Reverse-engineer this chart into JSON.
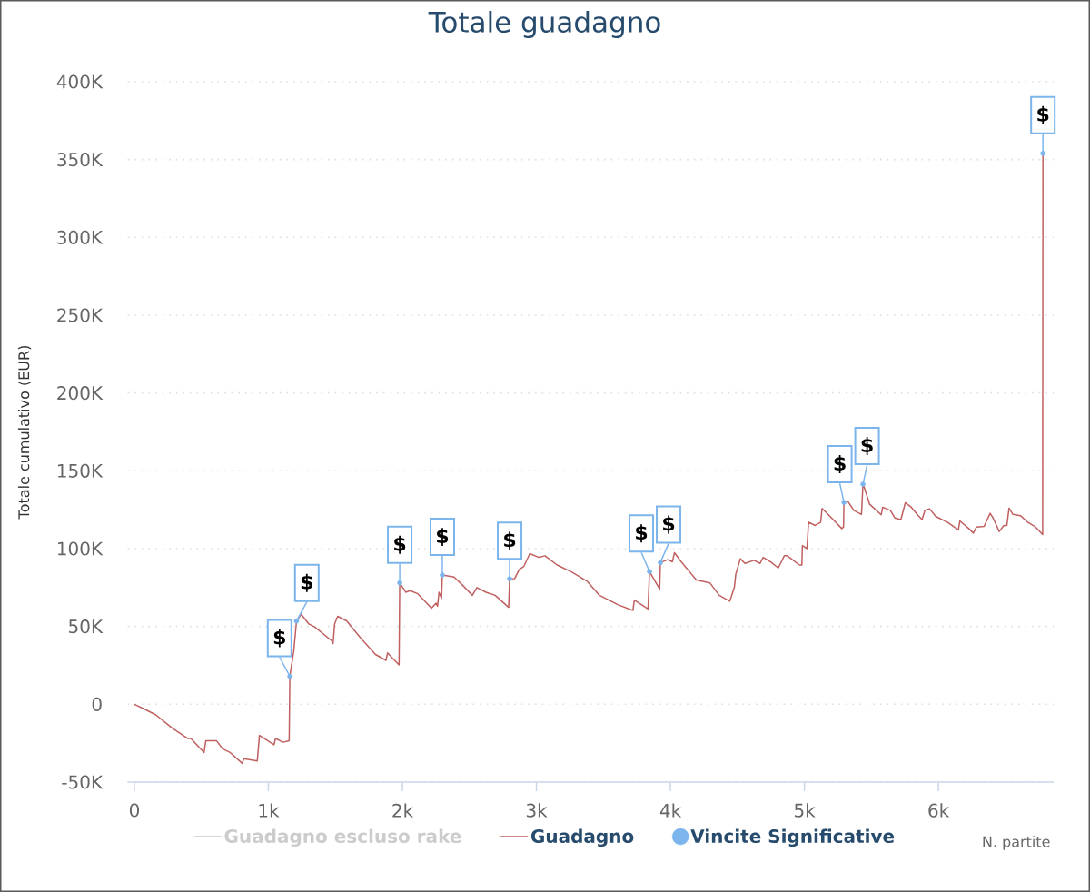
{
  "chart_data": {
    "type": "line",
    "title": "Totale guadagno",
    "xlabel": "N. partite",
    "ylabel": "Totale cumulativo (EUR)",
    "xlim": [
      -50,
      6860
    ],
    "ylim": [
      -50000,
      400000
    ],
    "xticks": [
      0,
      {
        "value": 1000,
        "label": "1k"
      },
      {
        "value": 2000,
        "label": "2k"
      },
      {
        "value": 3000,
        "label": "3k"
      },
      {
        "value": 4000,
        "label": "4k"
      },
      {
        "value": 5000,
        "label": "5k"
      },
      {
        "value": 6000,
        "label": "6k"
      }
    ],
    "yticks": [
      {
        "value": -50000,
        "label": "-50K"
      },
      0,
      {
        "value": 50000,
        "label": "50K"
      },
      {
        "value": 100000,
        "label": "100K"
      },
      {
        "value": 150000,
        "label": "150K"
      },
      {
        "value": 200000,
        "label": "200K"
      },
      {
        "value": 250000,
        "label": "250K"
      },
      {
        "value": 300000,
        "label": "300K"
      },
      {
        "value": 350000,
        "label": "350K"
      },
      {
        "value": 400000,
        "label": "400K"
      }
    ],
    "grid": "y",
    "legend": "bottom",
    "series": [
      {
        "name": "Guadagno escluso rake",
        "color": "#cccccc"
      },
      {
        "name": "Guadagno",
        "color": "#c06060",
        "x": [
          0,
          80,
          160,
          285,
          400,
          420,
          520,
          533,
          612,
          658,
          714,
          805,
          816,
          917,
          933,
          1042,
          1053,
          1110,
          1155,
          1160,
          1189,
          1210,
          1245,
          1302,
          1347,
          1471,
          1483,
          1494,
          1517,
          1584,
          1686,
          1799,
          1878,
          1889,
          1975,
          1980,
          2025,
          2058,
          2115,
          2217,
          2251,
          2262,
          2273,
          2292,
          2298,
          2386,
          2443,
          2522,
          2556,
          2624,
          2692,
          2793,
          2800,
          2838,
          2872,
          2906,
          2951,
          3019,
          3064,
          3155,
          3268,
          3381,
          3471,
          3607,
          3720,
          3731,
          3833,
          3844,
          3920,
          3925,
          3980,
          4015,
          4030,
          4081,
          4194,
          4296,
          4364,
          4443,
          4477,
          4488,
          4522,
          4556,
          4624,
          4669,
          4692,
          4748,
          4805,
          4850,
          4872,
          4963,
          4981,
          4985,
          5019,
          5031,
          5080,
          5121,
          5132,
          5188,
          5279,
          5292,
          5295,
          5324,
          5369,
          5426,
          5437,
          5449,
          5487,
          5573,
          5584,
          5641,
          5675,
          5720,
          5753,
          5798,
          5844,
          5878,
          5900,
          5934,
          5980,
          6070,
          6149,
          6160,
          6227,
          6261,
          6284,
          6341,
          6386,
          6408,
          6454,
          6488,
          6511,
          6527,
          6556,
          6612,
          6669,
          6725,
          6778,
          6780
        ],
        "values": [
          0,
          -3300,
          -6800,
          -15500,
          -22000,
          -21800,
          -31000,
          -23400,
          -23400,
          -28600,
          -31000,
          -38000,
          -35000,
          -36400,
          -20000,
          -26000,
          -22000,
          -24400,
          -23400,
          18000,
          34000,
          53500,
          57800,
          51600,
          49600,
          40900,
          39000,
          51600,
          56500,
          53600,
          42800,
          32000,
          28200,
          33000,
          25300,
          78000,
          72000,
          73000,
          71000,
          61700,
          65000,
          63000,
          72000,
          68000,
          83000,
          81800,
          77000,
          70000,
          75000,
          72000,
          70000,
          62300,
          80600,
          80800,
          86600,
          88600,
          96800,
          94400,
          95400,
          89500,
          84700,
          78900,
          70000,
          64000,
          60300,
          67000,
          61300,
          85300,
          74000,
          91000,
          92900,
          91500,
          97400,
          91500,
          79800,
          77900,
          70000,
          66200,
          75000,
          83700,
          93500,
          90500,
          92500,
          90500,
          94400,
          91500,
          87600,
          95400,
          95400,
          89500,
          89500,
          102000,
          100000,
          117000,
          114900,
          116800,
          125800,
          121000,
          112900,
          113900,
          129700,
          130400,
          124600,
          122000,
          141400,
          138800,
          128500,
          121700,
          126600,
          124600,
          119700,
          118700,
          129500,
          126600,
          121700,
          118700,
          124600,
          125600,
          120700,
          116800,
          112000,
          117800,
          112900,
          110000,
          113900,
          114300,
          122700,
          119700,
          111000,
          114900,
          114900,
          126000,
          122000,
          121200,
          116800,
          113900,
          109000,
          354000
        ]
      },
      {
        "name": "Vincite Significative",
        "type": "scatter",
        "color": "#7cb5ec",
        "marker": "circle",
        "x": [
          1160,
          1210,
          1980,
          2298,
          2800,
          3844,
          3925,
          5295,
          5437,
          6780
        ],
        "values": [
          18000,
          53500,
          78000,
          83000,
          80600,
          85300,
          91000,
          129700,
          141400,
          354000
        ]
      }
    ],
    "annotations": [
      {
        "text": "$",
        "x": 1160,
        "y": 18000
      },
      {
        "text": "$",
        "x": 1210,
        "y": 53500
      },
      {
        "text": "$",
        "x": 1980,
        "y": 78000
      },
      {
        "text": "$",
        "x": 2298,
        "y": 83000
      },
      {
        "text": "$",
        "x": 2800,
        "y": 80600
      },
      {
        "text": "$",
        "x": 3844,
        "y": 85300
      },
      {
        "text": "$",
        "x": 3925,
        "y": 91000
      },
      {
        "text": "$",
        "x": 5295,
        "y": 129700
      },
      {
        "text": "$",
        "x": 5437,
        "y": 141400
      },
      {
        "text": "$",
        "x": 6780,
        "y": 354000
      }
    ]
  }
}
